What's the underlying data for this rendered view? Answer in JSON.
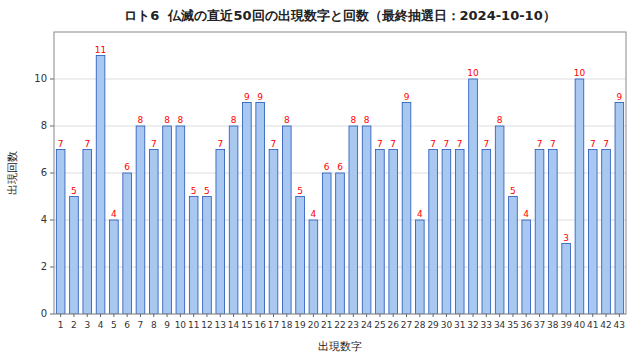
{
  "chart_data": {
    "type": "bar",
    "title": "ロト6  仏滅の直近50回の出現数字と回数（最終抽選日：2024-10-10）",
    "x_label": "出現数字",
    "y_label": "出現回数",
    "categories": [
      1,
      2,
      3,
      4,
      5,
      6,
      7,
      8,
      9,
      10,
      11,
      12,
      13,
      14,
      15,
      16,
      17,
      18,
      19,
      20,
      21,
      22,
      23,
      24,
      25,
      26,
      27,
      28,
      29,
      30,
      31,
      32,
      33,
      34,
      35,
      36,
      37,
      38,
      39,
      40,
      41,
      42,
      43
    ],
    "values": [
      7,
      5,
      7,
      11,
      4,
      6,
      8,
      7,
      8,
      8,
      5,
      5,
      7,
      8,
      9,
      9,
      7,
      8,
      5,
      4,
      6,
      6,
      8,
      8,
      7,
      7,
      9,
      4,
      7,
      7,
      7,
      10,
      7,
      8,
      5,
      4,
      7,
      7,
      3,
      10,
      7,
      7,
      9
    ],
    "color": "#a8c8f0",
    "ylim": [
      0,
      12
    ],
    "yticks": [
      0,
      2,
      4,
      6,
      8,
      10
    ],
    "grid": true,
    "data_labels": true
  }
}
